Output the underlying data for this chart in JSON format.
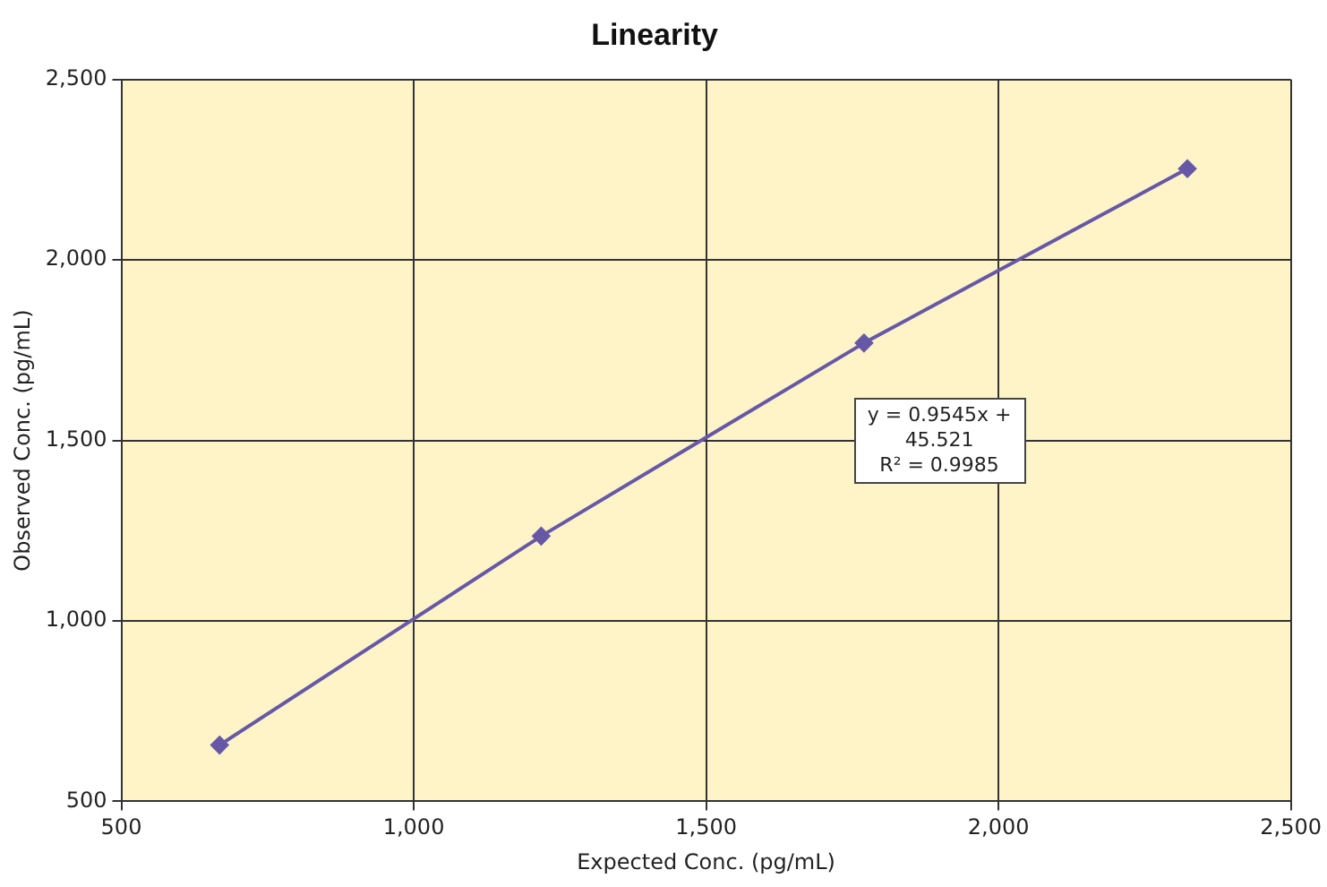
{
  "chart_data": {
    "type": "line",
    "title": "Linearity",
    "xlabel": "Expected Conc. (pg/mL)",
    "ylabel": "Observed Conc. (pg/mL)",
    "x": [
      668,
      1218,
      1770,
      2323
    ],
    "series": [
      {
        "color": "#6658a6",
        "values": [
          656,
          1235,
          1770,
          2253
        ]
      }
    ],
    "xlim": [
      500,
      2500
    ],
    "xticks": [
      500,
      {
        "value": 1000,
        "label": "1,000"
      },
      {
        "value": 1500,
        "label": "1,500"
      },
      {
        "value": 2000,
        "label": "2,000"
      },
      {
        "value": 2500,
        "label": "2,500"
      }
    ],
    "ylim": [
      500,
      2500
    ],
    "yticks": [
      500,
      {
        "value": 1000,
        "label": "1,000"
      },
      {
        "value": 1500,
        "label": "1,500"
      },
      {
        "value": 2000,
        "label": "2,000"
      },
      {
        "value": 2500,
        "label": "2,500"
      }
    ],
    "grid": true,
    "legend": false,
    "marker": "diamond",
    "line_style": "solid",
    "annotations": [
      "y = 0.9545x + 45.521",
      "R² = 0.9985"
    ]
  }
}
